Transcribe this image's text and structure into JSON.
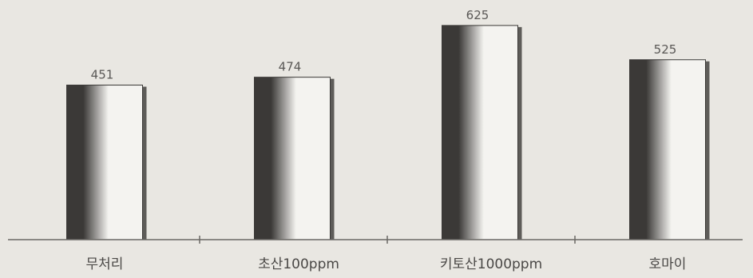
{
  "chart_data": {
    "type": "bar",
    "categories": [
      "무처리",
      "초산100ppm",
      "키토산1000ppm",
      "호마이"
    ],
    "values": [
      451,
      474,
      625,
      525
    ],
    "data_labels": [
      "451",
      "474",
      "625",
      "525"
    ],
    "title": "",
    "xlabel": "",
    "ylabel": "",
    "ylim": [
      0,
      700
    ],
    "grid": false,
    "legend": "none",
    "colors": {
      "background": "#e9e7e2",
      "bar_dark": "#3b3937",
      "bar_mid": "#b9b7b3",
      "bar_light": "#f4f3f0",
      "bar_shadow": "#5e5c59",
      "axis": "#6a6865",
      "text": "#4a4846"
    }
  }
}
